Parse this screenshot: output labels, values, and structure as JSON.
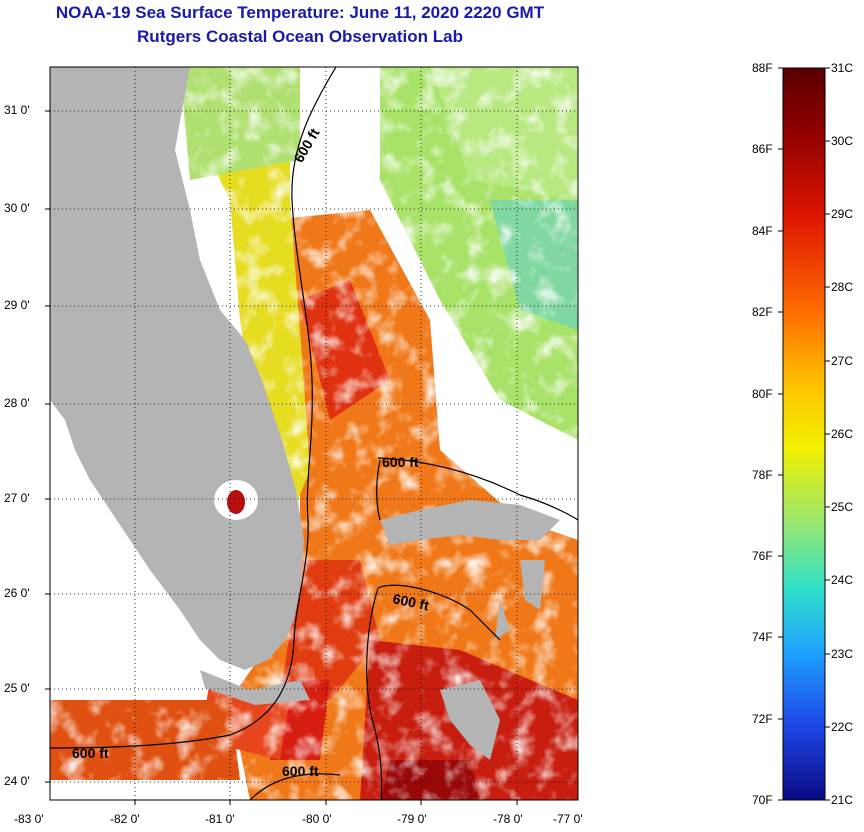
{
  "title_line1": "NOAA-19 Sea Surface Temperature:  June 11, 2020 2220 GMT",
  "title_line2": "Rutgers Coastal Ocean Observation Lab",
  "lat_ticks": [
    "31 0'",
    "30 0'",
    "29 0'",
    "28 0'",
    "27 0'",
    "26 0'",
    "25 0'",
    "24 0'"
  ],
  "lon_ticks": [
    "-83 0'",
    "-82 0'",
    "-81 0'",
    "-80 0'",
    "-79 0'",
    "-78 0'",
    "-77 0'"
  ],
  "contour_label": "600 ft",
  "colorbar": {
    "fahrenheit": [
      "88F",
      "86F",
      "84F",
      "82F",
      "80F",
      "78F",
      "76F",
      "74F",
      "72F",
      "70F"
    ],
    "celsius": [
      "31C",
      "30C",
      "29C",
      "28C",
      "27C",
      "26C",
      "25C",
      "24C",
      "23C",
      "22C",
      "21C"
    ]
  },
  "colors": {
    "title": "#1a1aa8",
    "land": "#b4b4b4",
    "cloud": "#ffffff"
  }
}
